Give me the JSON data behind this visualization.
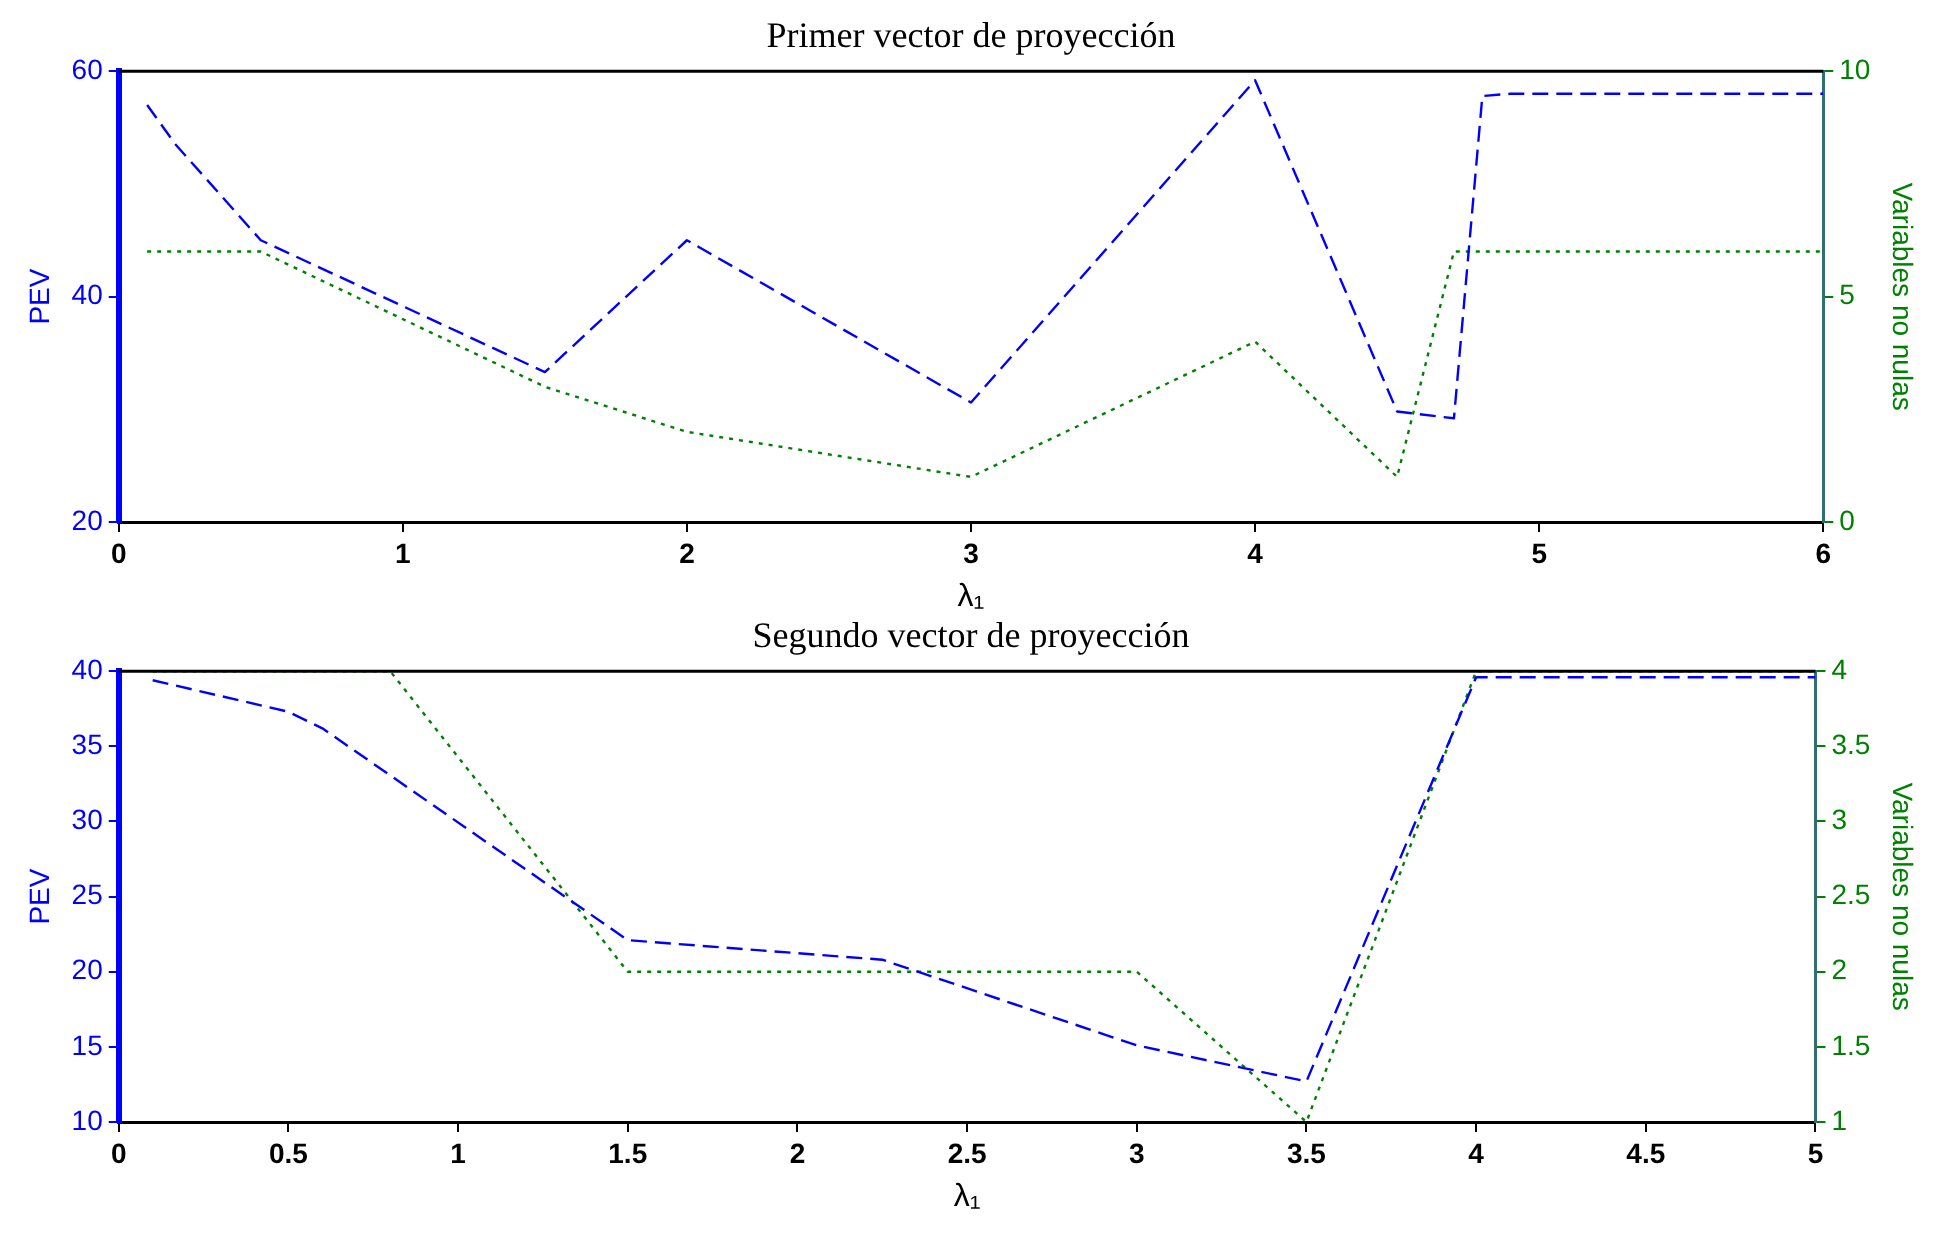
{
  "chart_data": [
    {
      "type": "line",
      "title": "Primer vector de proyección",
      "xlabel": "λ₁",
      "ylabel": "PEV",
      "y2label": "Variables no nulas",
      "xlim": [
        0,
        6
      ],
      "xticks": [
        0,
        1,
        2,
        3,
        4,
        5,
        6
      ],
      "ylim": [
        20,
        60
      ],
      "yticks": [
        20,
        40,
        60
      ],
      "y2lim": [
        0,
        10
      ],
      "y2ticks": [
        0,
        5,
        10
      ],
      "series": [
        {
          "color": "#0000ff",
          "line_style": "dashed",
          "x": [
            0.1,
            0.2,
            0.5,
            1.5,
            2,
            3,
            4,
            4.5,
            4.7,
            4.8,
            4.9,
            6
          ],
          "values": [
            57,
            53.5,
            45,
            33.3,
            45,
            30.6,
            59.2,
            29.8,
            29.2,
            57.8,
            58,
            58
          ]
        },
        {
          "color": "#008000",
          "line_style": "dotted",
          "axis": "y2",
          "x": [
            0.1,
            0.5,
            1.5,
            2,
            3,
            4,
            4.5,
            4.7,
            6
          ],
          "values": [
            6,
            6,
            3,
            2,
            1,
            4,
            1,
            6,
            6
          ]
        }
      ]
    },
    {
      "type": "line",
      "title": "Segundo vector de proyección",
      "xlabel": "λ₁",
      "ylabel": "PEV",
      "y2label": "Variables no nulas",
      "xlim": [
        0,
        5
      ],
      "xticks": [
        0,
        0.5,
        1,
        1.5,
        2,
        2.5,
        3,
        3.5,
        4,
        4.5,
        5
      ],
      "ylim": [
        10,
        40
      ],
      "yticks": [
        10,
        15,
        20,
        25,
        30,
        35,
        40
      ],
      "y2lim": [
        1,
        4
      ],
      "y2ticks": [
        1,
        1.5,
        2,
        2.5,
        3,
        3.5,
        4
      ],
      "series": [
        {
          "color": "#0000ff",
          "line_style": "dashed",
          "x": [
            0.1,
            0.5,
            0.6,
            1.5,
            2.25,
            3,
            3.5,
            4,
            5
          ],
          "values": [
            39.4,
            37.3,
            36.2,
            22.1,
            20.8,
            15.1,
            12.7,
            39.6,
            39.6
          ]
        },
        {
          "color": "#008000",
          "line_style": "dotted",
          "axis": "y2",
          "x": [
            0.1,
            0.8,
            1.5,
            3,
            3.5,
            4,
            5
          ],
          "values": [
            4,
            4,
            2,
            2,
            1,
            4,
            4
          ]
        }
      ]
    }
  ]
}
